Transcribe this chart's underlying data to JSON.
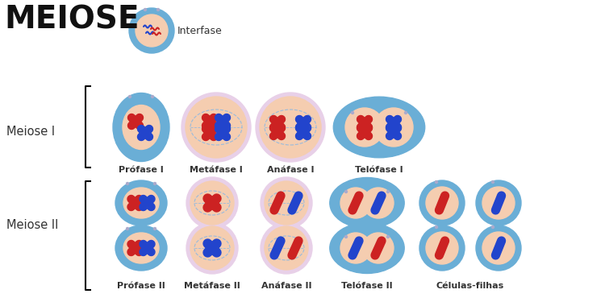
{
  "title": "MEIOSE",
  "interfase_label": "Interfase",
  "label_meiose1": "Meiose I",
  "label_meiose2": "Meiose II",
  "labels_row1": [
    "Prófase I",
    "Metáfase I",
    "Anáfase I",
    "Telófase I"
  ],
  "labels_row2": [
    "Prófase II",
    "Metáfase II",
    "Anáfase II",
    "Telófase II",
    "Células-filhas"
  ],
  "bg_color": "#ffffff",
  "outer_blue": "#6aaed6",
  "inner_peach": "#f5cdb0",
  "inner_lavender": "#e8d0e8",
  "chr_red": "#cc2222",
  "chr_blue": "#2244cc",
  "spindle_color": "#99bbdd",
  "label_color": "#333333",
  "title_color": "#111111",
  "bracket_color": "#333333"
}
